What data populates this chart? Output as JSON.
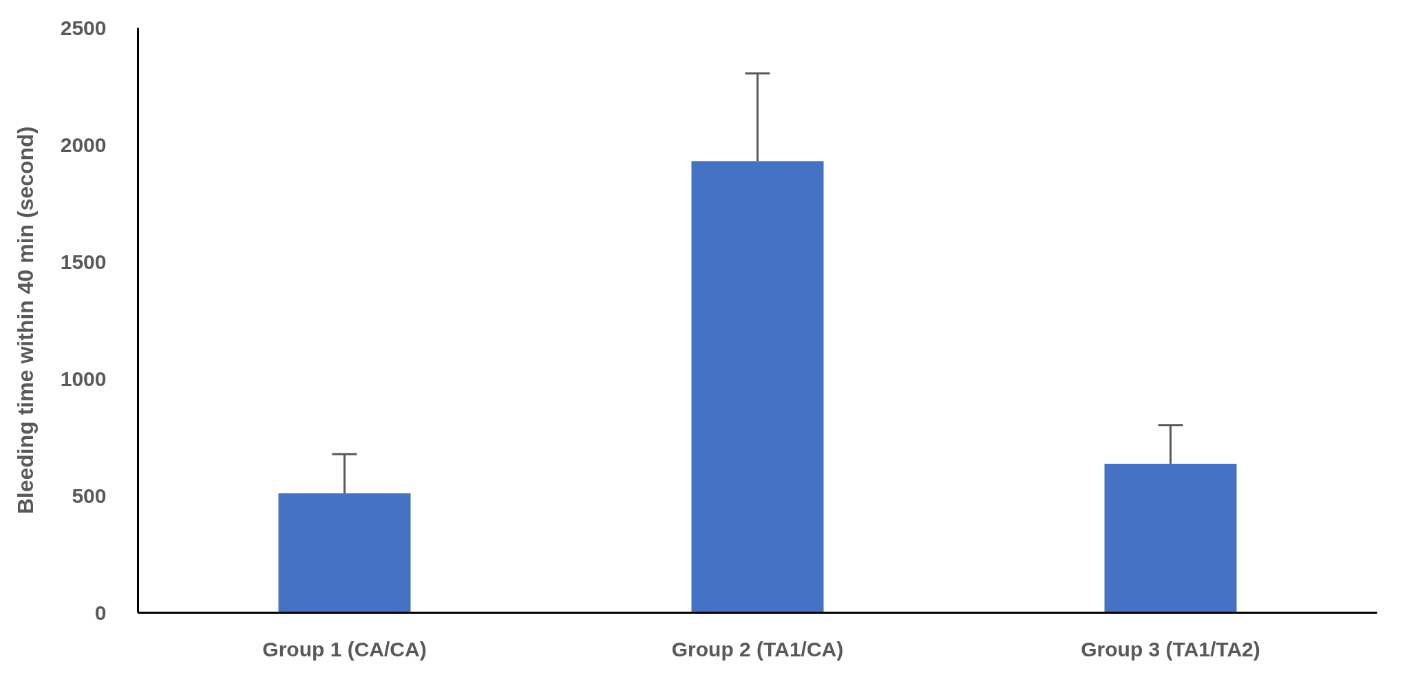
{
  "chart_data": {
    "type": "bar",
    "ylabel": "Bleeding time within 40 min (second)",
    "categories": [
      "Group 1 (CA/CA)",
      "Group 2 (TA1/CA)",
      "Group 3 (TA1/TA2)"
    ],
    "values": [
      510,
      1930,
      637
    ],
    "errors": [
      [
        510,
        678
      ],
      [
        1930,
        2305
      ],
      [
        637,
        802
      ]
    ],
    "color": "#4472c4",
    "ylim": [
      0,
      2500
    ],
    "yticks": [
      0,
      500,
      1000,
      1500,
      2000,
      2500
    ],
    "grid": false
  }
}
